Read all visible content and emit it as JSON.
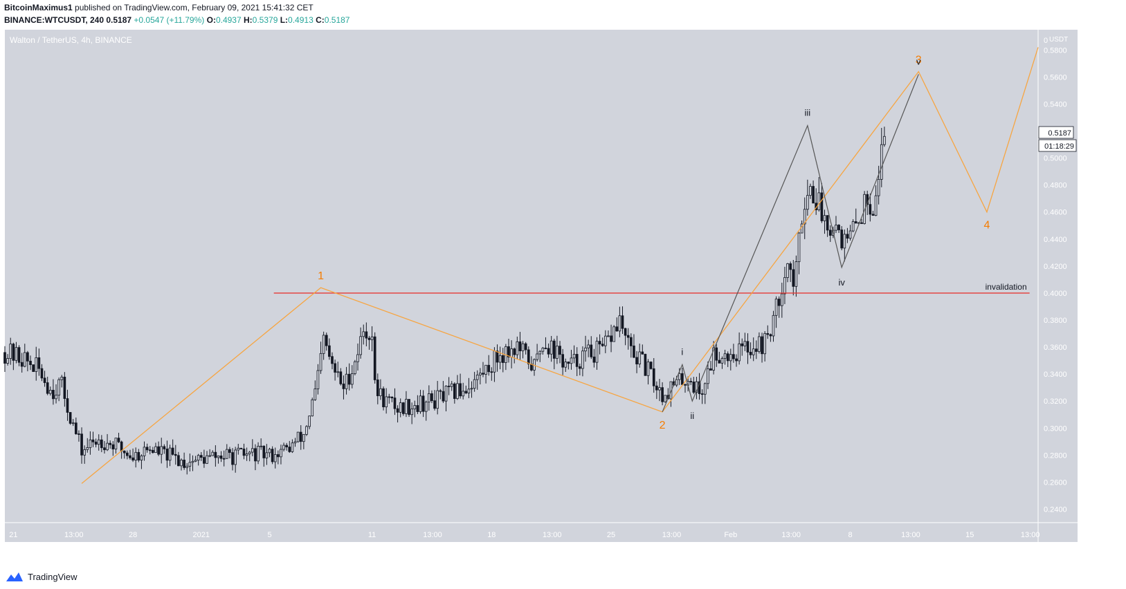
{
  "header": {
    "publisher": "BitcoinMaximus1",
    "published_text": "published on TradingView.com, February 09, 2021 15:41:32 CET",
    "symbol": "BINANCE:WTCUSDT, 240",
    "last": "0.5187",
    "change": "+0.0547 (+11.79%)",
    "o_label": "O:",
    "o": "0.4937",
    "h_label": "H:",
    "h": "0.5379",
    "l_label": "L:",
    "l": "0.4913",
    "c_label": "C:",
    "c": "0.5187"
  },
  "footer": {
    "brand": "TradingView"
  },
  "colors": {
    "plot_bg": "#d1d4dc",
    "candle": "#131722",
    "wave_orange": "#f7a541",
    "wave_label_orange": "#f57c00",
    "subwave_grey": "#555555",
    "invalidation": "#e53935"
  },
  "chart_data": {
    "type": "candlestick",
    "title": "Walton / TetherUS, 4h, BINANCE",
    "y_axis": {
      "unit": "USDT",
      "range": [
        0.23,
        0.595
      ],
      "ticks": [
        0.24,
        0.26,
        0.28,
        0.3,
        0.32,
        0.34,
        0.36,
        0.38,
        0.4,
        0.42,
        0.44,
        0.46,
        0.48,
        0.5,
        0.54,
        0.56,
        0.58
      ],
      "tick_labels": [
        "0.2400",
        "0.2600",
        "0.2800",
        "0.3000",
        "0.3200",
        "0.3400",
        "0.3600",
        "0.3800",
        "0.4000",
        "0.4200",
        "0.4400",
        "0.4600",
        "0.4800",
        "0.5000",
        "0.5400",
        "0.5600",
        "0.5800"
      ],
      "top_label": "0"
    },
    "x_axis": {
      "range": [
        "2020-12-20 12:00",
        "2021-02-19 00:00"
      ],
      "ticks": [
        {
          "t": "2020-12-21 00:00",
          "label": "21"
        },
        {
          "t": "2020-12-24 13:00",
          "label": "13:00"
        },
        {
          "t": "2020-12-28 00:00",
          "label": "28"
        },
        {
          "t": "2021-01-01 00:00",
          "label": "2021"
        },
        {
          "t": "2021-01-05 00:00",
          "label": "5"
        },
        {
          "t": "2021-01-11 00:00",
          "label": "11"
        },
        {
          "t": "2021-01-14 13:00",
          "label": "13:00"
        },
        {
          "t": "2021-01-18 00:00",
          "label": "18"
        },
        {
          "t": "2021-01-21 13:00",
          "label": "13:00"
        },
        {
          "t": "2021-01-25 00:00",
          "label": "25"
        },
        {
          "t": "2021-01-28 13:00",
          "label": "13:00"
        },
        {
          "t": "2021-02-01 00:00",
          "label": "Feb"
        },
        {
          "t": "2021-02-04 13:00",
          "label": "13:00"
        },
        {
          "t": "2021-02-08 00:00",
          "label": "8"
        },
        {
          "t": "2021-02-11 13:00",
          "label": "13:00"
        },
        {
          "t": "2021-02-15 00:00",
          "label": "15"
        },
        {
          "t": "2021-02-18 13:00",
          "label": "13:00"
        }
      ]
    },
    "candles_keypoints": [
      {
        "t": "2020-12-20 12:00",
        "v": 0.356
      },
      {
        "t": "2020-12-21 12:00",
        "v": 0.352
      },
      {
        "t": "2020-12-22 12:00",
        "v": 0.343
      },
      {
        "t": "2020-12-23 06:00",
        "v": 0.327
      },
      {
        "t": "2020-12-23 18:00",
        "v": 0.334
      },
      {
        "t": "2020-12-24 12:00",
        "v": 0.302
      },
      {
        "t": "2020-12-25 00:00",
        "v": 0.283
      },
      {
        "t": "2020-12-26 00:00",
        "v": 0.292
      },
      {
        "t": "2020-12-27 00:00",
        "v": 0.287
      },
      {
        "t": "2020-12-28 00:00",
        "v": 0.279
      },
      {
        "t": "2020-12-29 00:00",
        "v": 0.285
      },
      {
        "t": "2020-12-30 00:00",
        "v": 0.28
      },
      {
        "t": "2020-12-31 00:00",
        "v": 0.275
      },
      {
        "t": "2021-01-01 00:00",
        "v": 0.277
      },
      {
        "t": "2021-01-02 00:00",
        "v": 0.279
      },
      {
        "t": "2021-01-03 00:00",
        "v": 0.279
      },
      {
        "t": "2021-01-04 00:00",
        "v": 0.281
      },
      {
        "t": "2021-01-05 00:00",
        "v": 0.28
      },
      {
        "t": "2021-01-06 00:00",
        "v": 0.284
      },
      {
        "t": "2021-01-07 00:00",
        "v": 0.295
      },
      {
        "t": "2021-01-07 18:00",
        "v": 0.33
      },
      {
        "t": "2021-01-08 04:00",
        "v": 0.365
      },
      {
        "t": "2021-01-08 16:00",
        "v": 0.345
      },
      {
        "t": "2021-01-09 08:00",
        "v": 0.33
      },
      {
        "t": "2021-01-10 00:00",
        "v": 0.35
      },
      {
        "t": "2021-01-10 12:00",
        "v": 0.372
      },
      {
        "t": "2021-01-11 00:00",
        "v": 0.37
      },
      {
        "t": "2021-01-11 04:00",
        "v": 0.33
      },
      {
        "t": "2021-01-11 16:00",
        "v": 0.322
      },
      {
        "t": "2021-01-12 12:00",
        "v": 0.315
      },
      {
        "t": "2021-01-13 12:00",
        "v": 0.318
      },
      {
        "t": "2021-01-14 12:00",
        "v": 0.32
      },
      {
        "t": "2021-01-15 12:00",
        "v": 0.325
      },
      {
        "t": "2021-01-16 12:00",
        "v": 0.33
      },
      {
        "t": "2021-01-17 12:00",
        "v": 0.341
      },
      {
        "t": "2021-01-18 12:00",
        "v": 0.355
      },
      {
        "t": "2021-01-19 12:00",
        "v": 0.36
      },
      {
        "t": "2021-01-20 12:00",
        "v": 0.345
      },
      {
        "t": "2021-01-21 00:00",
        "v": 0.365
      },
      {
        "t": "2021-01-21 12:00",
        "v": 0.36
      },
      {
        "t": "2021-01-22 12:00",
        "v": 0.345
      },
      {
        "t": "2021-01-23 12:00",
        "v": 0.355
      },
      {
        "t": "2021-01-24 12:00",
        "v": 0.357
      },
      {
        "t": "2021-01-25 12:00",
        "v": 0.38
      },
      {
        "t": "2021-01-26 00:00",
        "v": 0.36
      },
      {
        "t": "2021-01-27 00:00",
        "v": 0.345
      },
      {
        "t": "2021-01-28 00:00",
        "v": 0.325
      },
      {
        "t": "2021-01-28 12:00",
        "v": 0.33
      },
      {
        "t": "2021-01-29 12:00",
        "v": 0.338
      },
      {
        "t": "2021-01-30 06:00",
        "v": 0.325
      },
      {
        "t": "2021-01-31 00:00",
        "v": 0.355
      },
      {
        "t": "2021-02-01 00:00",
        "v": 0.355
      },
      {
        "t": "2021-02-02 00:00",
        "v": 0.36
      },
      {
        "t": "2021-02-03 00:00",
        "v": 0.363
      },
      {
        "t": "2021-02-03 18:00",
        "v": 0.39
      },
      {
        "t": "2021-02-04 06:00",
        "v": 0.425
      },
      {
        "t": "2021-02-04 18:00",
        "v": 0.405
      },
      {
        "t": "2021-02-05 06:00",
        "v": 0.47
      },
      {
        "t": "2021-02-05 18:00",
        "v": 0.478
      },
      {
        "t": "2021-02-06 12:00",
        "v": 0.455
      },
      {
        "t": "2021-02-07 06:00",
        "v": 0.45
      },
      {
        "t": "2021-02-07 18:00",
        "v": 0.435
      },
      {
        "t": "2021-02-08 12:00",
        "v": 0.455
      },
      {
        "t": "2021-02-09 00:00",
        "v": 0.47
      },
      {
        "t": "2021-02-09 08:00",
        "v": 0.466
      },
      {
        "t": "2021-02-09 16:00",
        "v": 0.49
      },
      {
        "t": "2021-02-10 00:00",
        "v": 0.5187
      }
    ],
    "wave_count": [
      {
        "label": "",
        "t": "2020-12-25 00:00",
        "v": 0.259
      },
      {
        "label": "1",
        "t": "2021-01-08 00:00",
        "v": 0.404
      },
      {
        "label": "2",
        "t": "2021-01-28 00:00",
        "v": 0.312
      },
      {
        "label": "3",
        "t": "2021-02-12 00:00",
        "v": 0.564
      },
      {
        "label": "4",
        "t": "2021-02-16 00:00",
        "v": 0.46
      },
      {
        "label": "",
        "t": "2021-02-19 00:00",
        "v": 0.582
      }
    ],
    "subwave_count": [
      {
        "label": "",
        "t": "2021-01-28 00:00",
        "v": 0.312
      },
      {
        "label": "i",
        "t": "2021-01-29 04:00",
        "v": 0.347
      },
      {
        "label": "ii",
        "t": "2021-01-29 18:00",
        "v": 0.32
      },
      {
        "label": "iii",
        "t": "2021-02-05 12:00",
        "v": 0.524
      },
      {
        "label": "iv",
        "t": "2021-02-07 12:00",
        "v": 0.419
      },
      {
        "label": "v",
        "t": "2021-02-12 00:00",
        "v": 0.562
      }
    ],
    "invalidation": {
      "label": "invalidation",
      "v": 0.4,
      "t_start": "2021-01-05 06:00",
      "t_end": "2021-02-18 12:00"
    },
    "last_price_label": "0.5187",
    "countdown_label": "01:18:29"
  }
}
